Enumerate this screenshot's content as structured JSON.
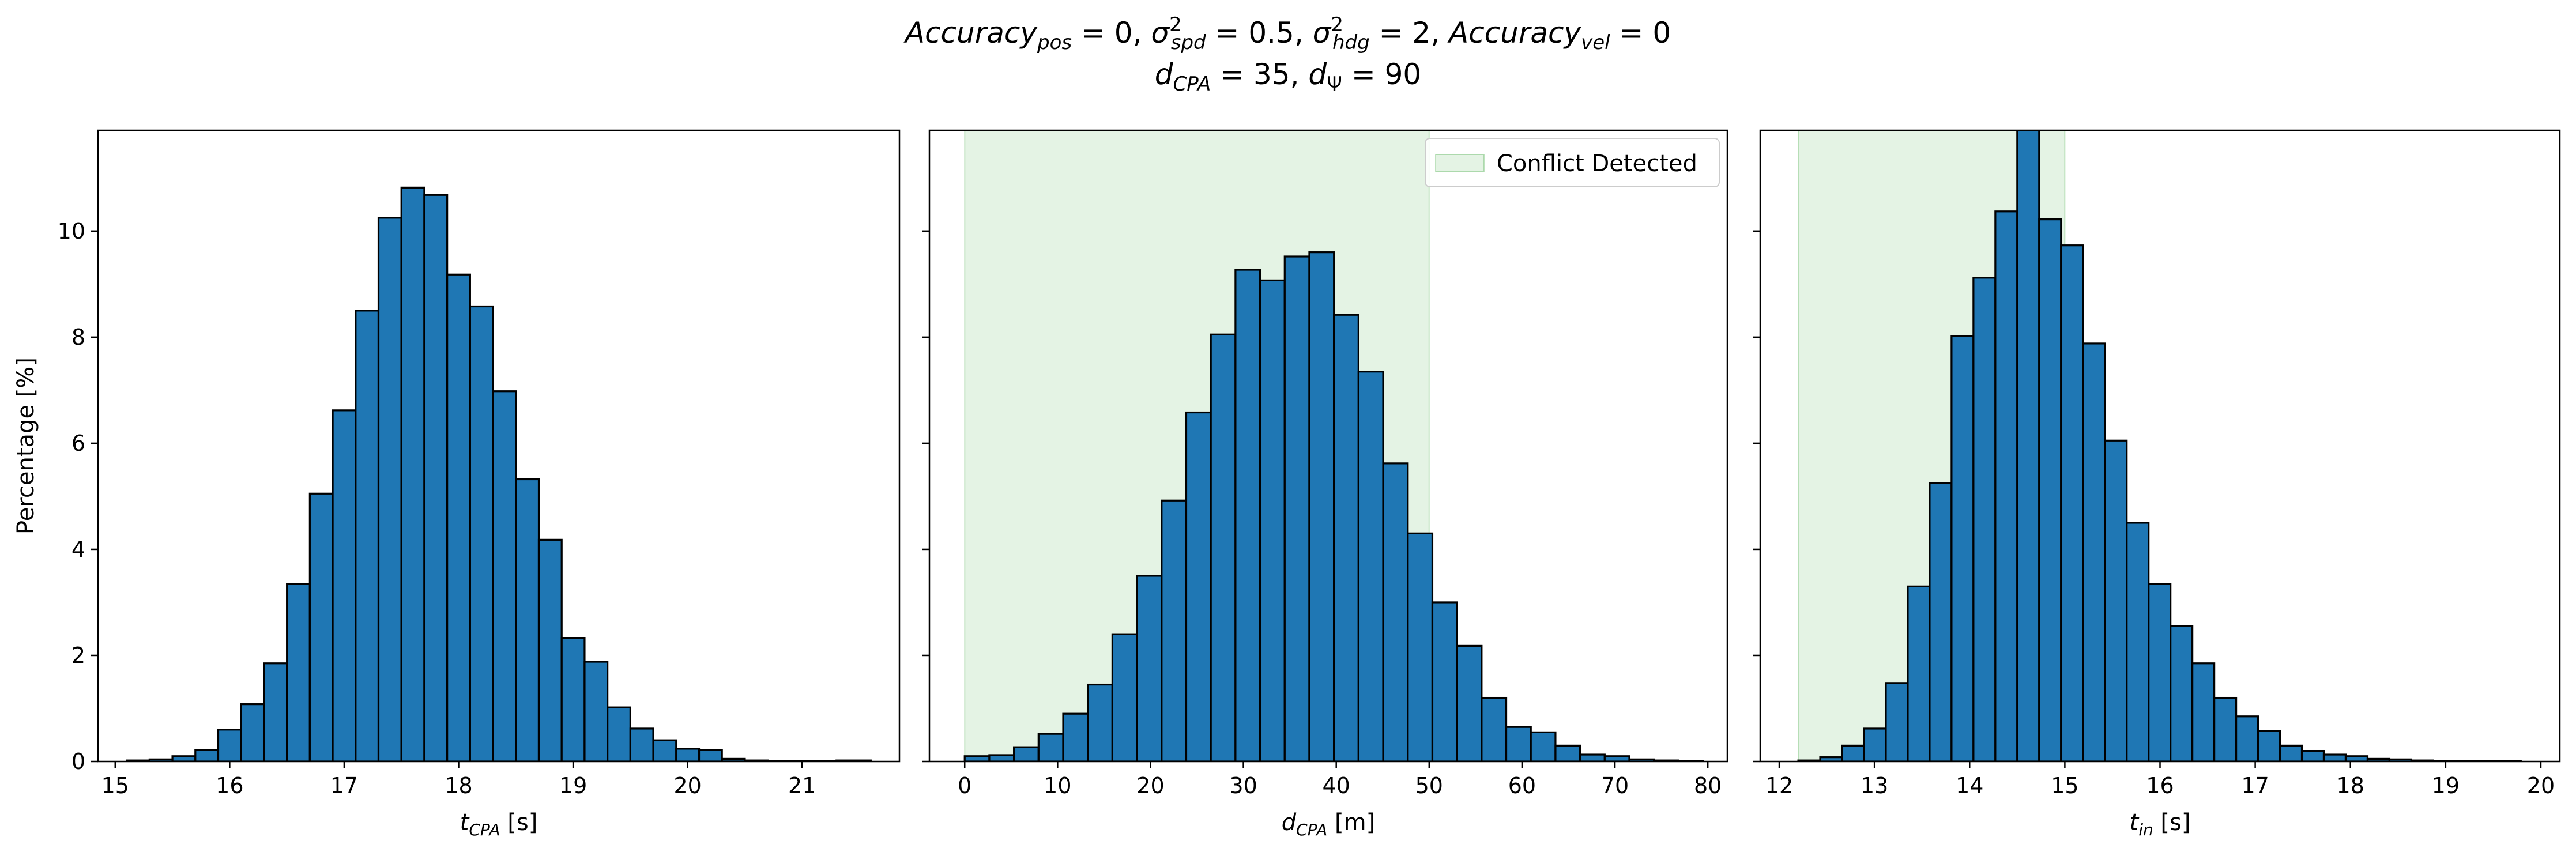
{
  "figure": {
    "title_line1": "Accuracy_pos = 0, σ²_spd = 0.5, σ²_hdg = 2, Accuracy_vel = 0",
    "title_line2": "d_CPA = 35, d_Ψ = 90",
    "bar_color": "#1f77b4",
    "edge_color": "#000000",
    "shade_color": "#2ca02c"
  },
  "chart_data": [
    {
      "type": "bar",
      "title": "",
      "xlabel": "t_CPA [s]",
      "ylabel": "Percentage [%]",
      "xlim": [
        14.85,
        21.85
      ],
      "ylim": [
        0,
        11.9
      ],
      "xticks": [
        15,
        16,
        17,
        18,
        19,
        20,
        21
      ],
      "yticks": [
        0,
        2,
        4,
        6,
        8,
        10
      ],
      "bin_edges": [
        15.1,
        15.3,
        15.5,
        15.7,
        15.9,
        16.1,
        16.3,
        16.5,
        16.7,
        16.9,
        17.1,
        17.3,
        17.5,
        17.7,
        17.9,
        18.1,
        18.3,
        18.5,
        18.7,
        18.9,
        19.1,
        19.3,
        19.5,
        19.7,
        19.9,
        20.1,
        20.3,
        20.5,
        20.7,
        20.9,
        21.1,
        21.3,
        21.6
      ],
      "values": [
        0.02,
        0.04,
        0.1,
        0.22,
        0.6,
        1.08,
        1.85,
        3.35,
        5.05,
        6.62,
        8.5,
        10.25,
        10.82,
        10.68,
        9.18,
        8.58,
        6.98,
        5.32,
        4.18,
        2.33,
        1.88,
        1.02,
        0.62,
        0.4,
        0.24,
        0.22,
        0.05,
        0.02,
        0.01,
        0.01,
        0.01,
        0.02
      ],
      "shaded_region": null,
      "legend": null
    },
    {
      "type": "bar",
      "title": "",
      "xlabel": "d_CPA [m]",
      "ylabel": "",
      "xlim": [
        -3.8,
        82.1
      ],
      "ylim": [
        0,
        11.9
      ],
      "xticks": [
        0,
        10,
        20,
        30,
        40,
        50,
        60,
        70,
        80
      ],
      "yticks": [
        0,
        2,
        4,
        6,
        8,
        10
      ],
      "bin_edges": [
        0,
        2.65,
        5.3,
        7.95,
        10.6,
        13.25,
        15.9,
        18.55,
        21.2,
        23.85,
        26.5,
        29.15,
        31.8,
        34.45,
        37.1,
        39.75,
        42.4,
        45.05,
        47.7,
        50.35,
        53,
        55.65,
        58.3,
        60.95,
        63.6,
        66.25,
        68.9,
        71.55,
        74.2,
        76.85,
        79.5
      ],
      "values": [
        0.1,
        0.12,
        0.27,
        0.52,
        0.9,
        1.45,
        2.4,
        3.5,
        4.92,
        6.58,
        8.05,
        9.27,
        9.07,
        9.52,
        9.6,
        8.42,
        7.35,
        5.62,
        4.3,
        3.0,
        2.18,
        1.2,
        0.65,
        0.55,
        0.3,
        0.13,
        0.1,
        0.04,
        0.02,
        0.01
      ],
      "shaded_region": [
        0,
        50
      ],
      "legend": {
        "entries": [
          "Conflict Detected"
        ],
        "placement": "upper-right"
      }
    },
    {
      "type": "bar",
      "title": "",
      "xlabel": "t_in [s]",
      "ylabel": "",
      "xlim": [
        11.8,
        20.2
      ],
      "ylim": [
        0,
        11.9
      ],
      "xticks": [
        12,
        13,
        14,
        15,
        16,
        17,
        18,
        19,
        20
      ],
      "yticks": [
        0,
        2,
        4,
        6,
        8,
        10
      ],
      "bin_edges": [
        12.2,
        12.43,
        12.66,
        12.89,
        13.12,
        13.35,
        13.58,
        13.81,
        14.04,
        14.27,
        14.5,
        14.73,
        14.96,
        15.19,
        15.42,
        15.65,
        15.88,
        16.11,
        16.34,
        16.57,
        16.8,
        17.03,
        17.26,
        17.49,
        17.72,
        17.95,
        18.18,
        18.41,
        18.64,
        18.87,
        19.1,
        19.33,
        19.56,
        19.79
      ],
      "values": [
        0.02,
        0.08,
        0.3,
        0.62,
        1.48,
        3.3,
        5.25,
        8.02,
        9.12,
        10.37,
        11.9,
        10.22,
        9.73,
        7.88,
        6.05,
        4.5,
        3.35,
        2.55,
        1.85,
        1.2,
        0.85,
        0.58,
        0.3,
        0.2,
        0.13,
        0.1,
        0.05,
        0.04,
        0.02,
        0.01,
        0.01,
        0.01,
        0.01
      ],
      "shaded_region": [
        12.2,
        15.0
      ],
      "legend": null
    }
  ]
}
